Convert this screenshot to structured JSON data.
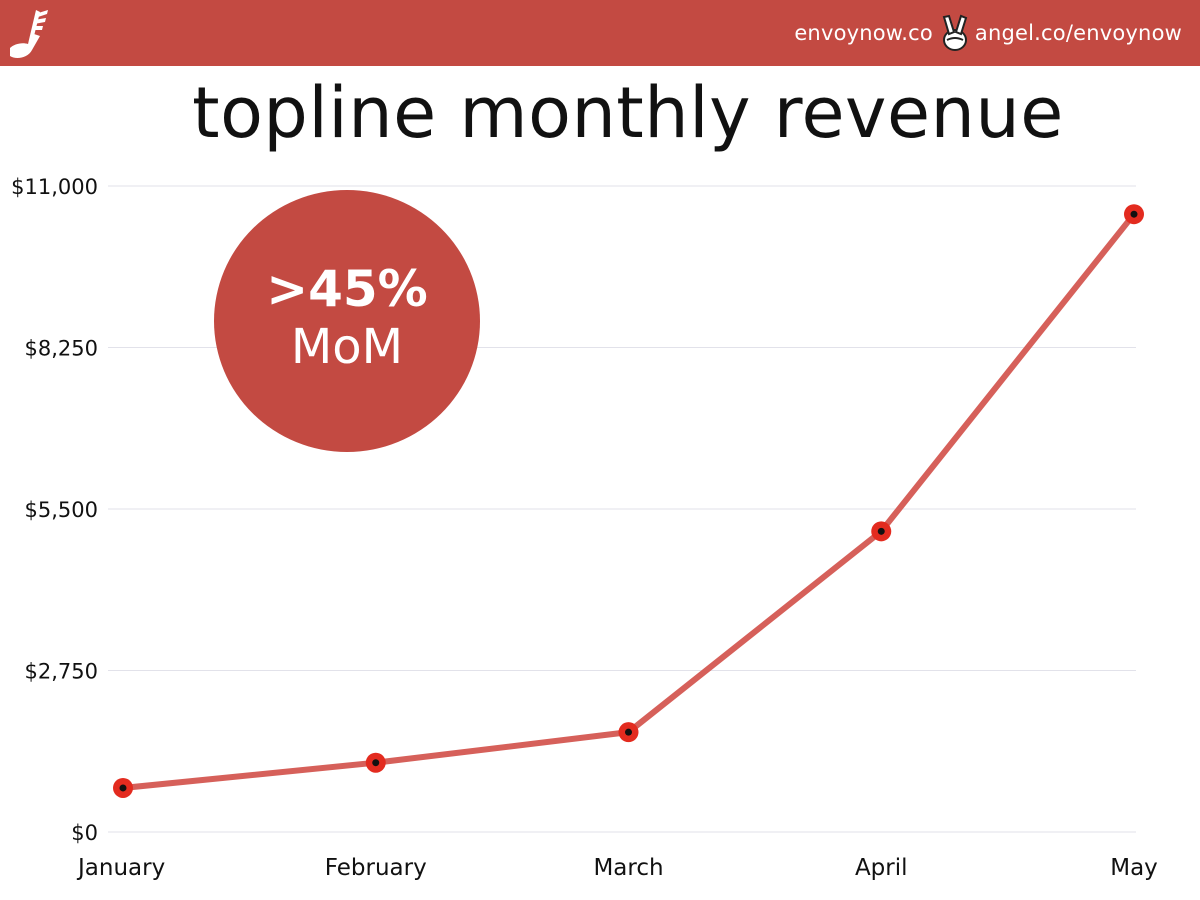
{
  "header": {
    "site_link": "envoynow.co",
    "angel_link": "angel.co/envoynow",
    "logo_icon": "winged-shoe-icon",
    "separator_icon": "peace-hand-icon",
    "bar_color": "#c34a42"
  },
  "badge": {
    "value": ">45%",
    "label": "MoM",
    "color": "#c34a42"
  },
  "chart_data": {
    "type": "line",
    "title": "topline monthly revenue",
    "categories": [
      "January",
      "February",
      "March",
      "April",
      "May"
    ],
    "series": [
      {
        "values": [
          750,
          1180,
          1700,
          5120,
          10520
        ],
        "color": "#d6605a",
        "marker_color": "#e32b1f"
      }
    ],
    "y_ticks": [
      {
        "value": 0,
        "label": "$0"
      },
      {
        "value": 2750,
        "label": "$2,750"
      },
      {
        "value": 5500,
        "label": "$5,500"
      },
      {
        "value": 8250,
        "label": "$8,250"
      },
      {
        "value": 11000,
        "label": "$11,000"
      }
    ],
    "ylim": [
      0,
      11000
    ],
    "xlabel": "",
    "ylabel": "",
    "grid": true
  }
}
